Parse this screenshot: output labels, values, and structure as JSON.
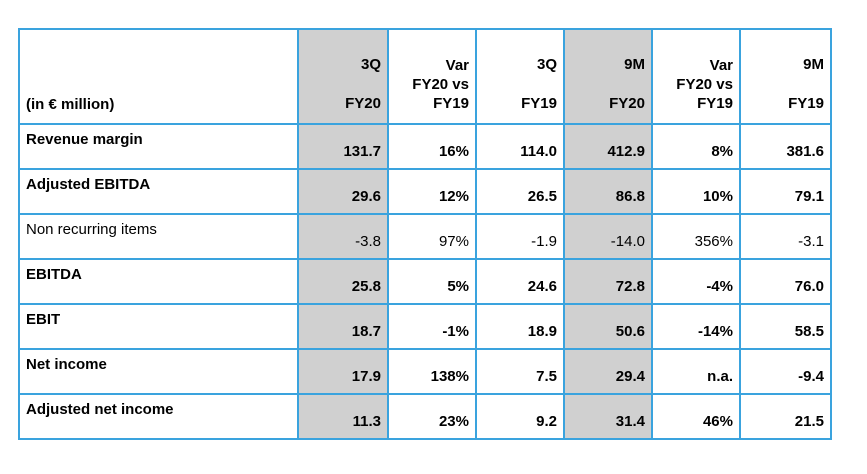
{
  "header": {
    "unit_label": "(in € million)",
    "columns": [
      {
        "line1": "3Q",
        "line2": "FY20",
        "shaded": true
      },
      {
        "line1": "Var",
        "line2": "FY20 vs",
        "line3": "FY19",
        "shaded": false
      },
      {
        "line1": "3Q",
        "line2": "FY19",
        "shaded": false
      },
      {
        "line1": "9M",
        "line2": "FY20",
        "shaded": true
      },
      {
        "line1": "Var",
        "line2": "FY20 vs",
        "line3": "FY19",
        "shaded": false
      },
      {
        "line1": "9M",
        "line2": "FY19",
        "shaded": false
      }
    ]
  },
  "rows": [
    {
      "label": "Revenue margin",
      "values": [
        "131.7",
        "16%",
        "114.0",
        "412.9",
        "8%",
        "381.6"
      ]
    },
    {
      "label": "Adjusted EBITDA",
      "values": [
        "29.6",
        "12%",
        "26.5",
        "86.8",
        "10%",
        "79.1"
      ]
    },
    {
      "label": "Non recurring items",
      "values": [
        "-3.8",
        "97%",
        "-1.9",
        "-14.0",
        "356%",
        "-3.1"
      ]
    },
    {
      "label": "EBITDA",
      "values": [
        "25.8",
        "5%",
        "24.6",
        "72.8",
        "-4%",
        "76.0"
      ]
    },
    {
      "label": "EBIT",
      "values": [
        "18.7",
        "-1%",
        "18.9",
        "50.6",
        "-14%",
        "58.5"
      ]
    },
    {
      "label": "Net income",
      "values": [
        "17.9",
        "138%",
        "7.5",
        "29.4",
        "n.a.",
        "-9.4"
      ]
    },
    {
      "label": "Adjusted net income",
      "values": [
        "11.3",
        "23%",
        "9.2",
        "31.4",
        "46%",
        "21.5"
      ]
    }
  ],
  "colors": {
    "border": "#3aa3de",
    "shade": "#d0d0d0"
  }
}
